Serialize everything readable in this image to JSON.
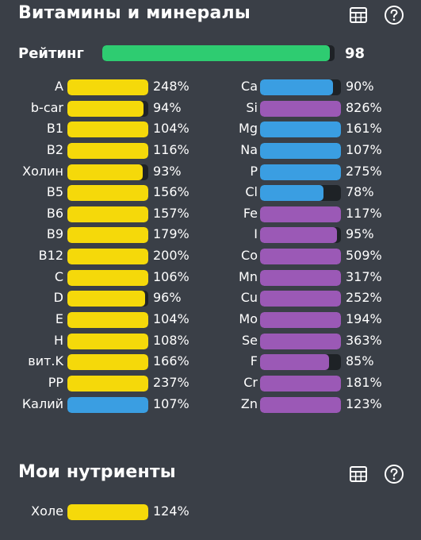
{
  "colors": {
    "background": "#3a3f47",
    "track": "#1e2226",
    "yellow": "#f5d90a",
    "blue": "#3a9ee2",
    "purple": "#9b59b6",
    "green": "#2ecc71",
    "text": "#ffffff"
  },
  "vitamins_section": {
    "title": "Витамины и минералы",
    "table_icon": "table-grid-icon",
    "help_icon": "question-circle-icon"
  },
  "rating": {
    "label": "Рейтинг",
    "value": "98",
    "fill": 0.98,
    "color": "#2ecc71"
  },
  "left_items": [
    {
      "label": "A",
      "pct": "248%",
      "fill": 1.0,
      "color": "#f5d90a"
    },
    {
      "label": "b-car",
      "pct": "94%",
      "fill": 0.94,
      "color": "#f5d90a"
    },
    {
      "label": "B1",
      "pct": "104%",
      "fill": 1.0,
      "color": "#f5d90a"
    },
    {
      "label": "B2",
      "pct": "116%",
      "fill": 1.0,
      "color": "#f5d90a"
    },
    {
      "label": "Холин",
      "pct": "93%",
      "fill": 0.93,
      "color": "#f5d90a"
    },
    {
      "label": "B5",
      "pct": "156%",
      "fill": 1.0,
      "color": "#f5d90a"
    },
    {
      "label": "B6",
      "pct": "157%",
      "fill": 1.0,
      "color": "#f5d90a"
    },
    {
      "label": "B9",
      "pct": "179%",
      "fill": 1.0,
      "color": "#f5d90a"
    },
    {
      "label": "B12",
      "pct": "200%",
      "fill": 1.0,
      "color": "#f5d90a"
    },
    {
      "label": "C",
      "pct": "106%",
      "fill": 1.0,
      "color": "#f5d90a"
    },
    {
      "label": "D",
      "pct": "96%",
      "fill": 0.96,
      "color": "#f5d90a"
    },
    {
      "label": "E",
      "pct": "104%",
      "fill": 1.0,
      "color": "#f5d90a"
    },
    {
      "label": "H",
      "pct": "108%",
      "fill": 1.0,
      "color": "#f5d90a"
    },
    {
      "label": "вит.K",
      "pct": "166%",
      "fill": 1.0,
      "color": "#f5d90a"
    },
    {
      "label": "PP",
      "pct": "237%",
      "fill": 1.0,
      "color": "#f5d90a"
    },
    {
      "label": "Калий",
      "pct": "107%",
      "fill": 1.0,
      "color": "#3a9ee2"
    }
  ],
  "right_items": [
    {
      "label": "Ca",
      "pct": "90%",
      "fill": 0.9,
      "color": "#3a9ee2"
    },
    {
      "label": "Si",
      "pct": "826%",
      "fill": 1.0,
      "color": "#9b59b6"
    },
    {
      "label": "Mg",
      "pct": "161%",
      "fill": 1.0,
      "color": "#3a9ee2"
    },
    {
      "label": "Na",
      "pct": "107%",
      "fill": 1.0,
      "color": "#3a9ee2"
    },
    {
      "label": "P",
      "pct": "275%",
      "fill": 1.0,
      "color": "#3a9ee2"
    },
    {
      "label": "Cl",
      "pct": "78%",
      "fill": 0.78,
      "color": "#3a9ee2"
    },
    {
      "label": "Fe",
      "pct": "117%",
      "fill": 1.0,
      "color": "#9b59b6"
    },
    {
      "label": "I",
      "pct": "95%",
      "fill": 0.95,
      "color": "#9b59b6"
    },
    {
      "label": "Co",
      "pct": "509%",
      "fill": 1.0,
      "color": "#9b59b6"
    },
    {
      "label": "Mn",
      "pct": "317%",
      "fill": 1.0,
      "color": "#9b59b6"
    },
    {
      "label": "Cu",
      "pct": "252%",
      "fill": 1.0,
      "color": "#9b59b6"
    },
    {
      "label": "Mo",
      "pct": "194%",
      "fill": 1.0,
      "color": "#9b59b6"
    },
    {
      "label": "Se",
      "pct": "363%",
      "fill": 1.0,
      "color": "#9b59b6"
    },
    {
      "label": "F",
      "pct": "85%",
      "fill": 0.85,
      "color": "#9b59b6"
    },
    {
      "label": "Cr",
      "pct": "181%",
      "fill": 1.0,
      "color": "#9b59b6"
    },
    {
      "label": "Zn",
      "pct": "123%",
      "fill": 1.0,
      "color": "#9b59b6"
    }
  ],
  "my_nutrients_section": {
    "title": "Мои нутриенты",
    "table_icon": "table-grid-icon",
    "help_icon": "question-circle-icon",
    "items": [
      {
        "label": "Холе",
        "pct": "124%",
        "fill": 1.0,
        "color": "#f5d90a"
      }
    ]
  }
}
